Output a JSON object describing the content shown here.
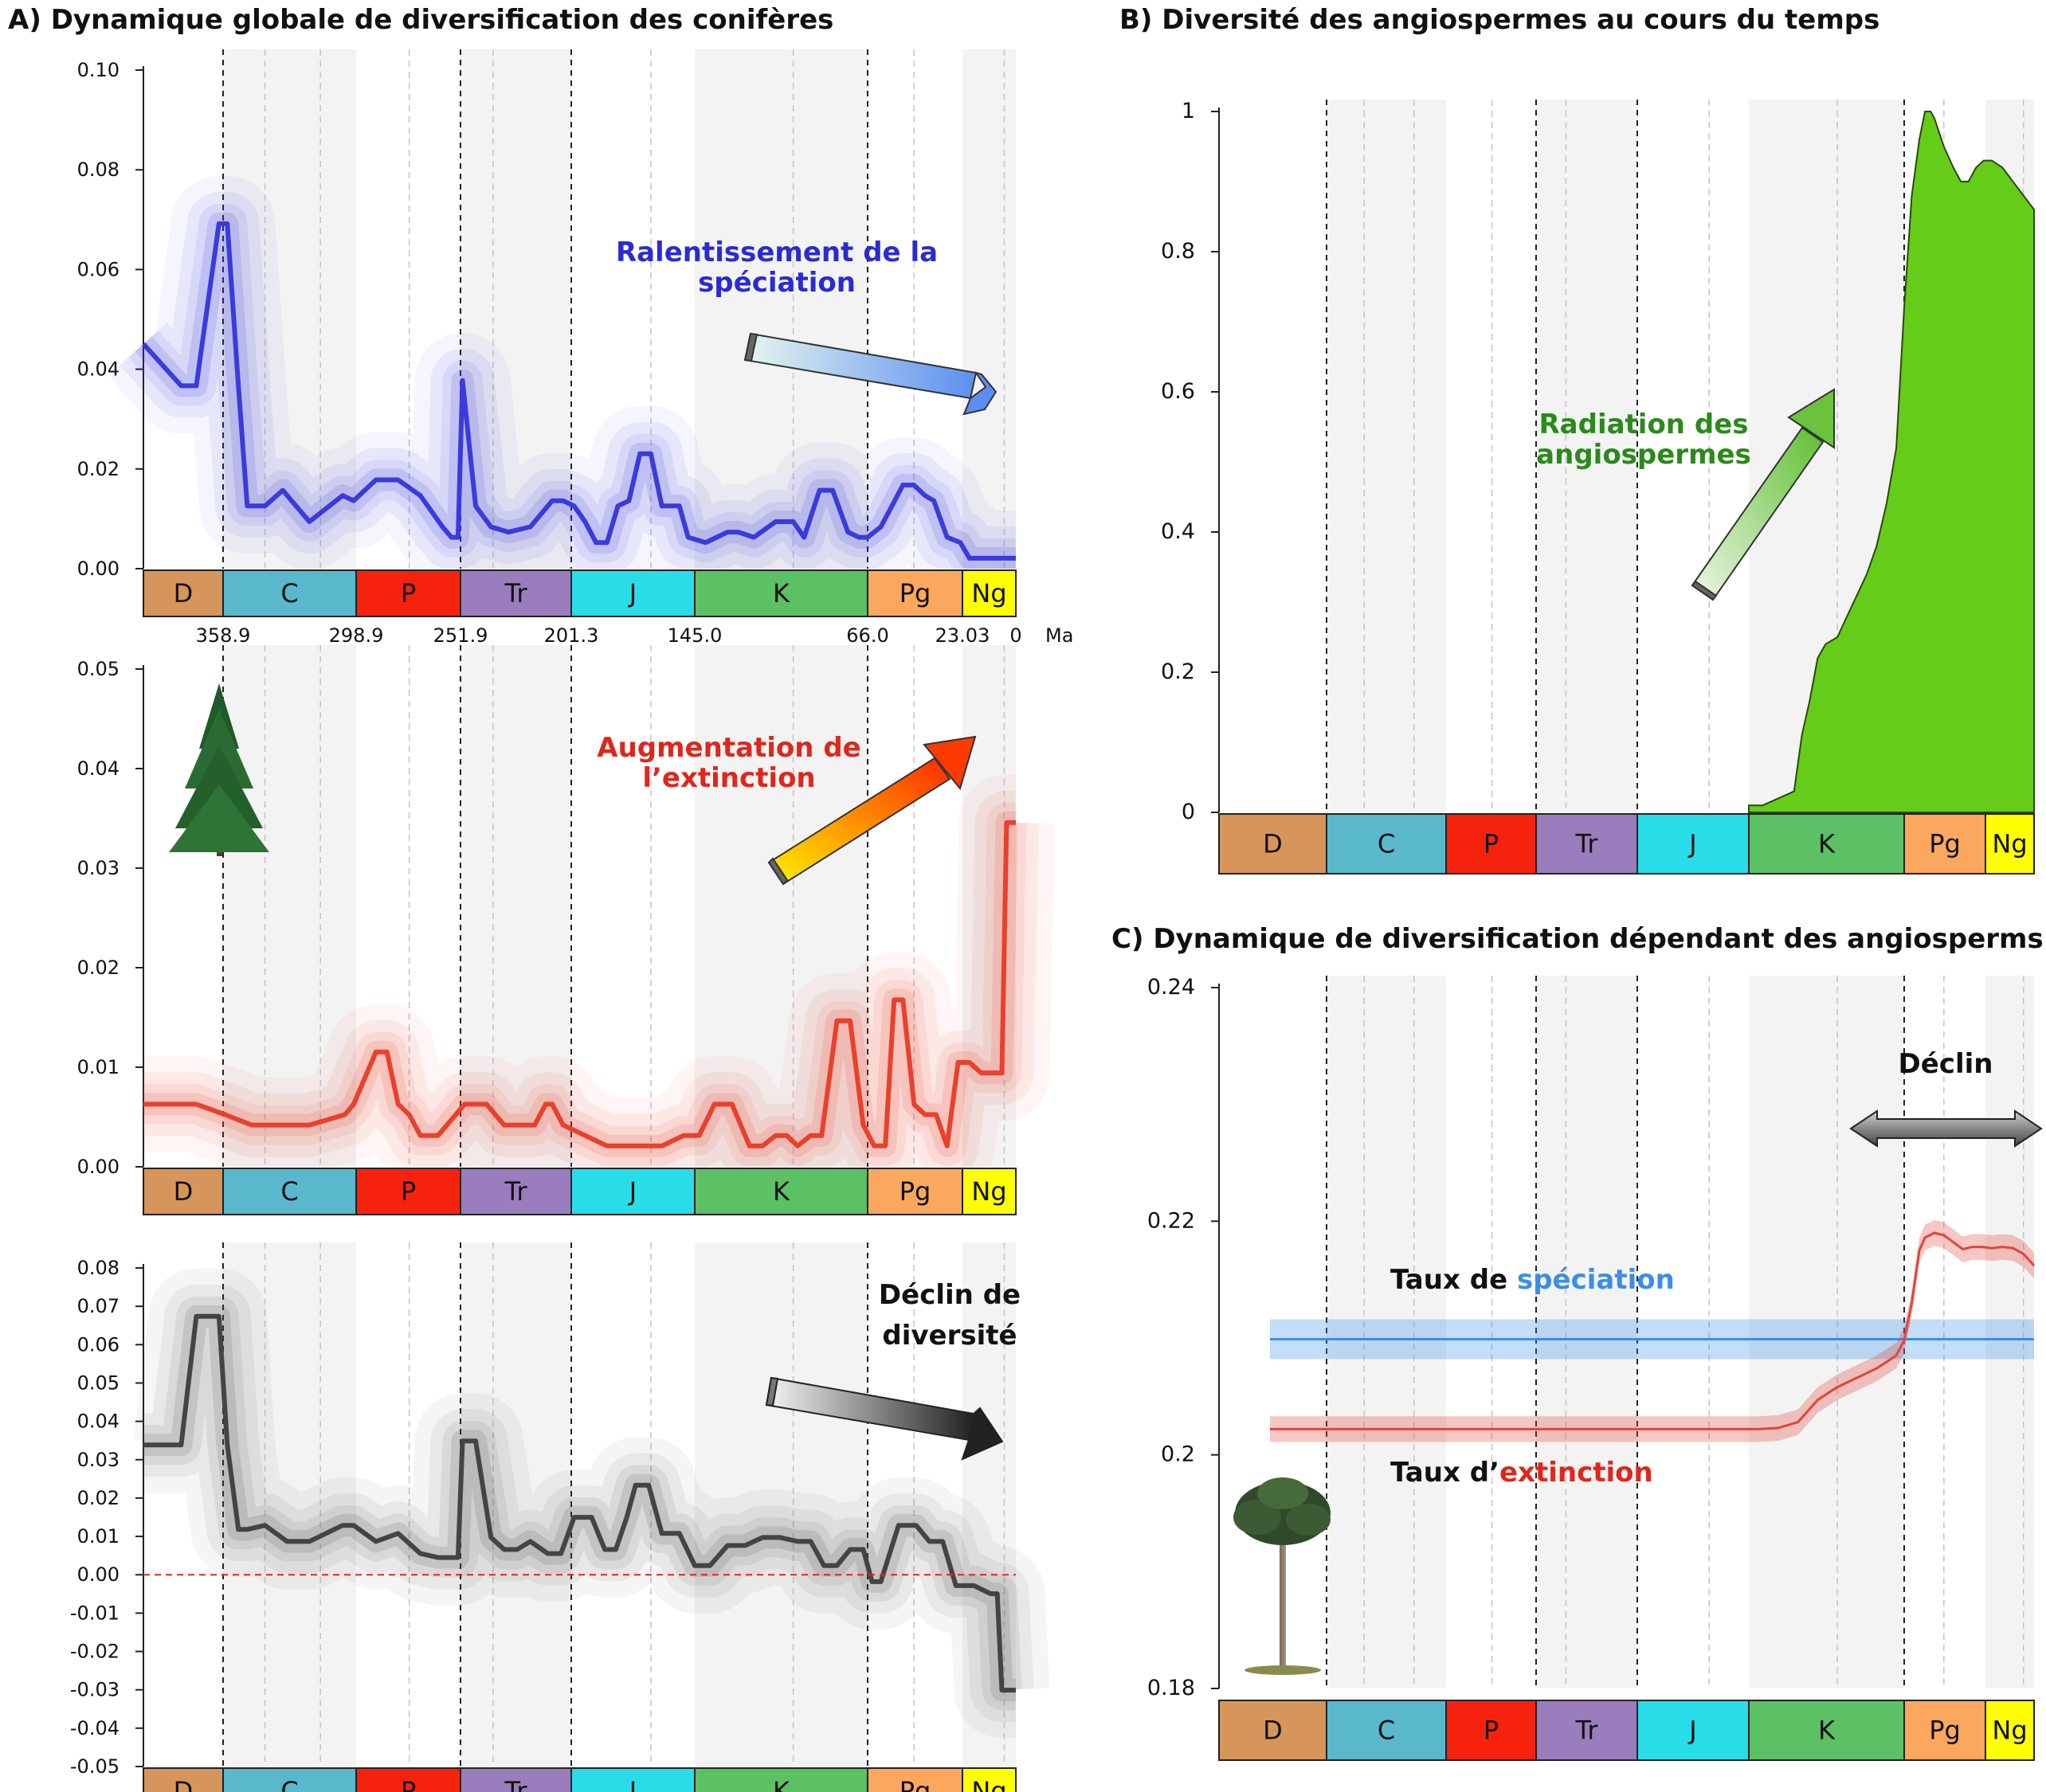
{
  "colors": {
    "speciation": "#3b3bdc",
    "speciation_text": "#2a2ad6",
    "extinction": "#e8412c",
    "extinction_text": "#e0261c",
    "net": "#444444",
    "angio_fill": "#66cc1a",
    "angio_text": "#2a8a1a",
    "c_speciation": "#3a8ee8",
    "c_extinction": "#e0463a",
    "zero_line": "#e0261c"
  },
  "periods": [
    {
      "label": "D",
      "start": 380,
      "end": 358.9,
      "color": "#d6955a"
    },
    {
      "label": "C",
      "start": 358.9,
      "end": 298.9,
      "color": "#5ab8cc"
    },
    {
      "label": "P",
      "start": 298.9,
      "end": 251.9,
      "color": "#f5230e"
    },
    {
      "label": "Tr",
      "start": 251.9,
      "end": 201.3,
      "color": "#9a7dbd"
    },
    {
      "label": "J",
      "start": 201.3,
      "end": 145.0,
      "color": "#28dde8"
    },
    {
      "label": "K",
      "start": 145.0,
      "end": 66.0,
      "color": "#5cc064"
    },
    {
      "label": "Pg",
      "start": 66.0,
      "end": 23.03,
      "color": "#fba85e"
    },
    {
      "label": "Ng",
      "start": 23.03,
      "end": 0,
      "color": "#ffff00"
    }
  ],
  "boundaries": [
    {
      "age": 358.9,
      "label": "358.9"
    },
    {
      "age": 298.9,
      "label": "298.9"
    },
    {
      "age": 251.9,
      "label": "251.9"
    },
    {
      "age": 201.3,
      "label": "201.3"
    },
    {
      "age": 145.0,
      "label": "145.0"
    },
    {
      "age": 66.0,
      "label": "66.0"
    },
    {
      "age": 23.03,
      "label": "23.03"
    },
    {
      "age": 0,
      "label": "0"
    }
  ],
  "time_unit": "Ma",
  "panel_a": {
    "title": "A) Dynamique globale de diversification des conifères",
    "speciation": {
      "ylim": [
        0,
        0.1
      ],
      "ticks": [
        "0.00",
        "0.02",
        "0.04",
        "0.06",
        "0.08",
        "0.10"
      ],
      "annotation": [
        "Ralentissement de la",
        "spéciation"
      ]
    },
    "extinction": {
      "ylim": [
        0,
        0.05
      ],
      "ticks": [
        "0.00",
        "0.01",
        "0.02",
        "0.03",
        "0.04",
        "0.05"
      ],
      "annotation": [
        "Augmentation de",
        "l’extinction"
      ]
    },
    "net": {
      "ylim": [
        -0.05,
        0.08
      ],
      "ticks": [
        "-0.05",
        "-0.04",
        "-0.03",
        "-0.02",
        "-0.01",
        "0.00",
        "0.01",
        "0.02",
        "0.03",
        "0.04",
        "0.05",
        "0.06",
        "0.07",
        "0.08"
      ],
      "annotation": [
        "Déclin de",
        "diversité"
      ]
    }
  },
  "panel_b": {
    "title": "B) Diversité des angiospermes au cours du temps",
    "ylim": [
      0,
      1
    ],
    "ticks": [
      "0",
      "0.2",
      "0.4",
      "0.6",
      "0.8",
      "1"
    ],
    "annotation": [
      "Radiation des",
      "angiospermes"
    ]
  },
  "panel_c": {
    "title": "C) Dynamique de diversification dépendant des angiosperms",
    "ylim": [
      0.18,
      0.24
    ],
    "ticks": [
      "0.18",
      "0.2",
      "0.22",
      "0.24"
    ],
    "decline_label": "Déclin",
    "speciation_label": {
      "prefix": "Taux de ",
      "word": "spéciation"
    },
    "extinction_label": {
      "prefix": "Taux d’",
      "word": "extinction"
    }
  },
  "chart_data": [
    {
      "type": "line",
      "panel": "A-speciation",
      "xlabel": "Ma",
      "ylim": [
        0,
        0.1
      ],
      "x": [
        380,
        370,
        366,
        360,
        357,
        352,
        348,
        340,
        332,
        320,
        305,
        300,
        290,
        280,
        270,
        260,
        256,
        253,
        251,
        245,
        238,
        230,
        220,
        210,
        205,
        200,
        195,
        190,
        185,
        180,
        175,
        170,
        165,
        160,
        152,
        148,
        140,
        130,
        125,
        118,
        108,
        100,
        95,
        88,
        82,
        75,
        70,
        66,
        60,
        55,
        50,
        45,
        40,
        36,
        30,
        24,
        20,
        12,
        5,
        0
      ],
      "series": [
        {
          "values": [
            0.043,
            0.035,
            0.035,
            0.066,
            0.066,
            0.035,
            0.012,
            0.012,
            0.015,
            0.009,
            0.014,
            0.013,
            0.017,
            0.017,
            0.014,
            0.008,
            0.006,
            0.006,
            0.036,
            0.012,
            0.008,
            0.007,
            0.008,
            0.013,
            0.013,
            0.012,
            0.009,
            0.005,
            0.005,
            0.012,
            0.013,
            0.022,
            0.022,
            0.012,
            0.012,
            0.006,
            0.005,
            0.007,
            0.007,
            0.006,
            0.009,
            0.009,
            0.006,
            0.015,
            0.015,
            0.007,
            0.006,
            0.006,
            0.008,
            0.012,
            0.016,
            0.016,
            0.014,
            0.013,
            0.006,
            0.005,
            0.002,
            0.002,
            0.002,
            0.002
          ]
        }
      ]
    },
    {
      "type": "line",
      "panel": "A-extinction",
      "xlabel": "Ma",
      "ylim": [
        0,
        0.05
      ],
      "x": [
        380,
        366,
        358,
        346,
        332,
        320,
        304,
        300,
        290,
        285,
        280,
        275,
        270,
        262,
        250,
        240,
        232,
        224,
        218,
        213,
        210,
        205,
        195,
        185,
        172,
        165,
        160,
        150,
        143,
        136,
        128,
        120,
        114,
        108,
        103,
        98,
        92,
        87,
        80,
        74,
        68,
        63,
        58,
        54,
        50,
        45,
        40,
        35,
        30,
        25,
        20,
        15,
        10,
        6,
        4,
        0
      ],
      "series": [
        {
          "values": [
            0.006,
            0.006,
            0.005,
            0.004,
            0.004,
            0.004,
            0.005,
            0.006,
            0.011,
            0.011,
            0.006,
            0.005,
            0.003,
            0.003,
            0.006,
            0.006,
            0.004,
            0.004,
            0.004,
            0.006,
            0.006,
            0.004,
            0.003,
            0.002,
            0.002,
            0.002,
            0.002,
            0.003,
            0.003,
            0.006,
            0.006,
            0.002,
            0.002,
            0.003,
            0.003,
            0.002,
            0.003,
            0.003,
            0.014,
            0.014,
            0.004,
            0.002,
            0.002,
            0.016,
            0.016,
            0.006,
            0.005,
            0.005,
            0.002,
            0.01,
            0.01,
            0.009,
            0.009,
            0.009,
            0.033,
            0.033
          ]
        }
      ]
    },
    {
      "type": "line",
      "panel": "A-net-diversification",
      "xlabel": "Ma",
      "ylim": [
        -0.05,
        0.08
      ],
      "x": [
        380,
        370,
        366,
        360,
        357,
        352,
        348,
        340,
        330,
        320,
        305,
        300,
        290,
        280,
        270,
        262,
        256,
        253,
        251,
        245,
        238,
        232,
        226,
        220,
        212,
        206,
        200,
        192,
        186,
        181,
        176,
        172,
        166,
        160,
        152,
        145,
        138,
        130,
        122,
        114,
        106,
        98,
        92,
        86,
        80,
        74,
        68,
        64,
        60,
        52,
        44,
        38,
        32,
        26,
        18,
        11,
        8,
        6,
        3,
        0
      ],
      "series": [
        {
          "values": [
            0.03,
            0.03,
            0.062,
            0.062,
            0.03,
            0.009,
            0.009,
            0.01,
            0.006,
            0.006,
            0.01,
            0.01,
            0.006,
            0.008,
            0.003,
            0.002,
            0.002,
            0.002,
            0.031,
            0.031,
            0.007,
            0.004,
            0.004,
            0.006,
            0.003,
            0.003,
            0.012,
            0.012,
            0.004,
            0.004,
            0.012,
            0.02,
            0.02,
            0.008,
            0.008,
            0.0,
            0.0,
            0.005,
            0.005,
            0.007,
            0.007,
            0.006,
            0.006,
            0.0,
            0.0,
            0.004,
            0.004,
            -0.004,
            -0.004,
            0.01,
            0.01,
            0.006,
            0.006,
            -0.005,
            -0.005,
            -0.007,
            -0.007,
            -0.031,
            -0.031,
            -0.031
          ]
        }
      ]
    },
    {
      "type": "area",
      "panel": "B",
      "xlabel": "Ma",
      "ylim": [
        0,
        1
      ],
      "x": [
        380,
        145,
        138,
        130,
        122,
        118,
        114,
        110,
        106,
        100,
        95,
        90,
        85,
        80,
        75,
        70,
        66,
        62,
        58,
        55,
        52,
        50,
        45,
        40,
        36,
        32,
        28,
        24,
        20,
        15,
        10,
        5,
        0
      ],
      "series": [
        {
          "values": [
            0,
            0.01,
            0.01,
            0.02,
            0.03,
            0.11,
            0.16,
            0.22,
            0.24,
            0.25,
            0.28,
            0.31,
            0.34,
            0.38,
            0.44,
            0.52,
            0.72,
            0.88,
            0.96,
            1.0,
            1.0,
            0.99,
            0.95,
            0.92,
            0.9,
            0.9,
            0.92,
            0.93,
            0.93,
            0.92,
            0.9,
            0.88,
            0.86
          ]
        }
      ]
    },
    {
      "type": "line",
      "panel": "C",
      "xlabel": "Ma",
      "ylim": [
        0.18,
        0.24
      ],
      "x": [
        370,
        150,
        140,
        130,
        120,
        110,
        100,
        90,
        80,
        70,
        66,
        62,
        58,
        55,
        50,
        45,
        40,
        35,
        30,
        25,
        20,
        15,
        10,
        5,
        0
      ],
      "series": [
        {
          "name": "spéciation",
          "values": [
            0.2099,
            0.2099,
            0.2099,
            0.2099,
            0.2099,
            0.2099,
            0.2099,
            0.2099,
            0.2099,
            0.2099,
            0.2099,
            0.2099,
            0.2099,
            0.2099,
            0.2099,
            0.2099,
            0.2099,
            0.2099,
            0.2099,
            0.2099,
            0.2099,
            0.2099,
            0.2099,
            0.2099,
            0.2099
          ]
        },
        {
          "name": "extinction",
          "values": [
            0.2022,
            0.2022,
            0.2022,
            0.2023,
            0.2028,
            0.2047,
            0.2058,
            0.2066,
            0.2074,
            0.2085,
            0.2098,
            0.213,
            0.2175,
            0.2186,
            0.219,
            0.2188,
            0.2182,
            0.2176,
            0.2178,
            0.2178,
            0.2177,
            0.2178,
            0.2177,
            0.2172,
            0.2162
          ]
        }
      ]
    }
  ]
}
